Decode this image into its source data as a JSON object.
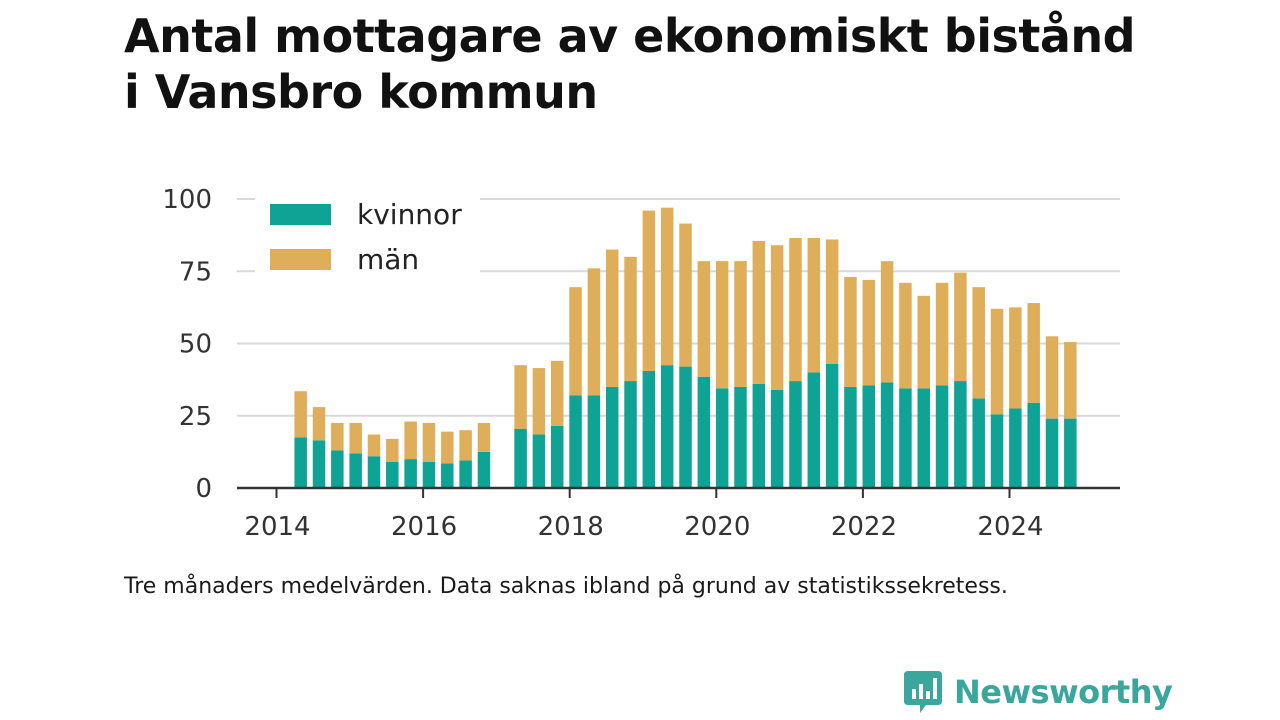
{
  "title_line1": "Antal mottagare av ekonomiskt bistånd",
  "title_line2": "i Vansbro kommun",
  "caption": "Tre månaders medelvärden. Data saknas ibland på grund av statistikssekretess.",
  "brand": {
    "name": "Newsworthy",
    "color": "#3aa69c",
    "icon": "chat-bar-chart-icon"
  },
  "colors": {
    "kvinnor": "#0fa396",
    "man": "#deae5a",
    "grid": "#d9d9d9",
    "axis": "#333333"
  },
  "chart_data": {
    "type": "bar",
    "stacked": true,
    "title": "Antal mottagare av ekonomiskt bistånd i Vansbro kommun",
    "xlabel": "",
    "ylabel": "",
    "ylim": [
      0,
      100
    ],
    "yticks": [
      0,
      25,
      50,
      75,
      100
    ],
    "xticks": [
      2014,
      2016,
      2018,
      2020,
      2022,
      2024
    ],
    "xlim": [
      2014,
      2025.5
    ],
    "grid": "horizontal",
    "legend": "top-left",
    "x": [
      2014.33,
      2014.58,
      2014.83,
      2015.08,
      2015.33,
      2015.58,
      2015.83,
      2016.08,
      2016.33,
      2016.58,
      2016.83,
      2017.33,
      2017.58,
      2017.83,
      2018.08,
      2018.33,
      2018.58,
      2018.83,
      2019.08,
      2019.33,
      2019.58,
      2019.83,
      2020.08,
      2020.33,
      2020.58,
      2020.83,
      2021.08,
      2021.33,
      2021.58,
      2021.83,
      2022.08,
      2022.33,
      2022.58,
      2022.83,
      2023.08,
      2023.33,
      2023.58,
      2023.83,
      2024.08,
      2024.33,
      2024.58,
      2024.83
    ],
    "series": [
      {
        "name": "kvinnor",
        "values": [
          17.5,
          16.5,
          13,
          12,
          11,
          9,
          10,
          9,
          8.5,
          9.5,
          12.5,
          20.5,
          18.5,
          21.5,
          32,
          32,
          35,
          37,
          40.5,
          42.5,
          42,
          38.5,
          34.5,
          35,
          36,
          34,
          37,
          40,
          43,
          35,
          35.5,
          36.5,
          34.5,
          34.5,
          35.5,
          37,
          31,
          25.5,
          27.5,
          29.5,
          24,
          24
        ]
      },
      {
        "name": "män",
        "values": [
          16,
          11.5,
          9.5,
          10.5,
          7.5,
          8,
          13,
          13.5,
          11,
          10.5,
          10,
          22,
          23,
          22.5,
          37.5,
          44,
          47.5,
          43,
          55.5,
          54.5,
          49.5,
          40,
          44,
          43.5,
          49.5,
          50,
          49.5,
          46.5,
          43,
          38,
          36.5,
          42,
          36.5,
          32,
          35.5,
          37.5,
          38.5,
          36.5,
          35,
          34.5,
          28.5,
          26.5
        ]
      }
    ]
  }
}
